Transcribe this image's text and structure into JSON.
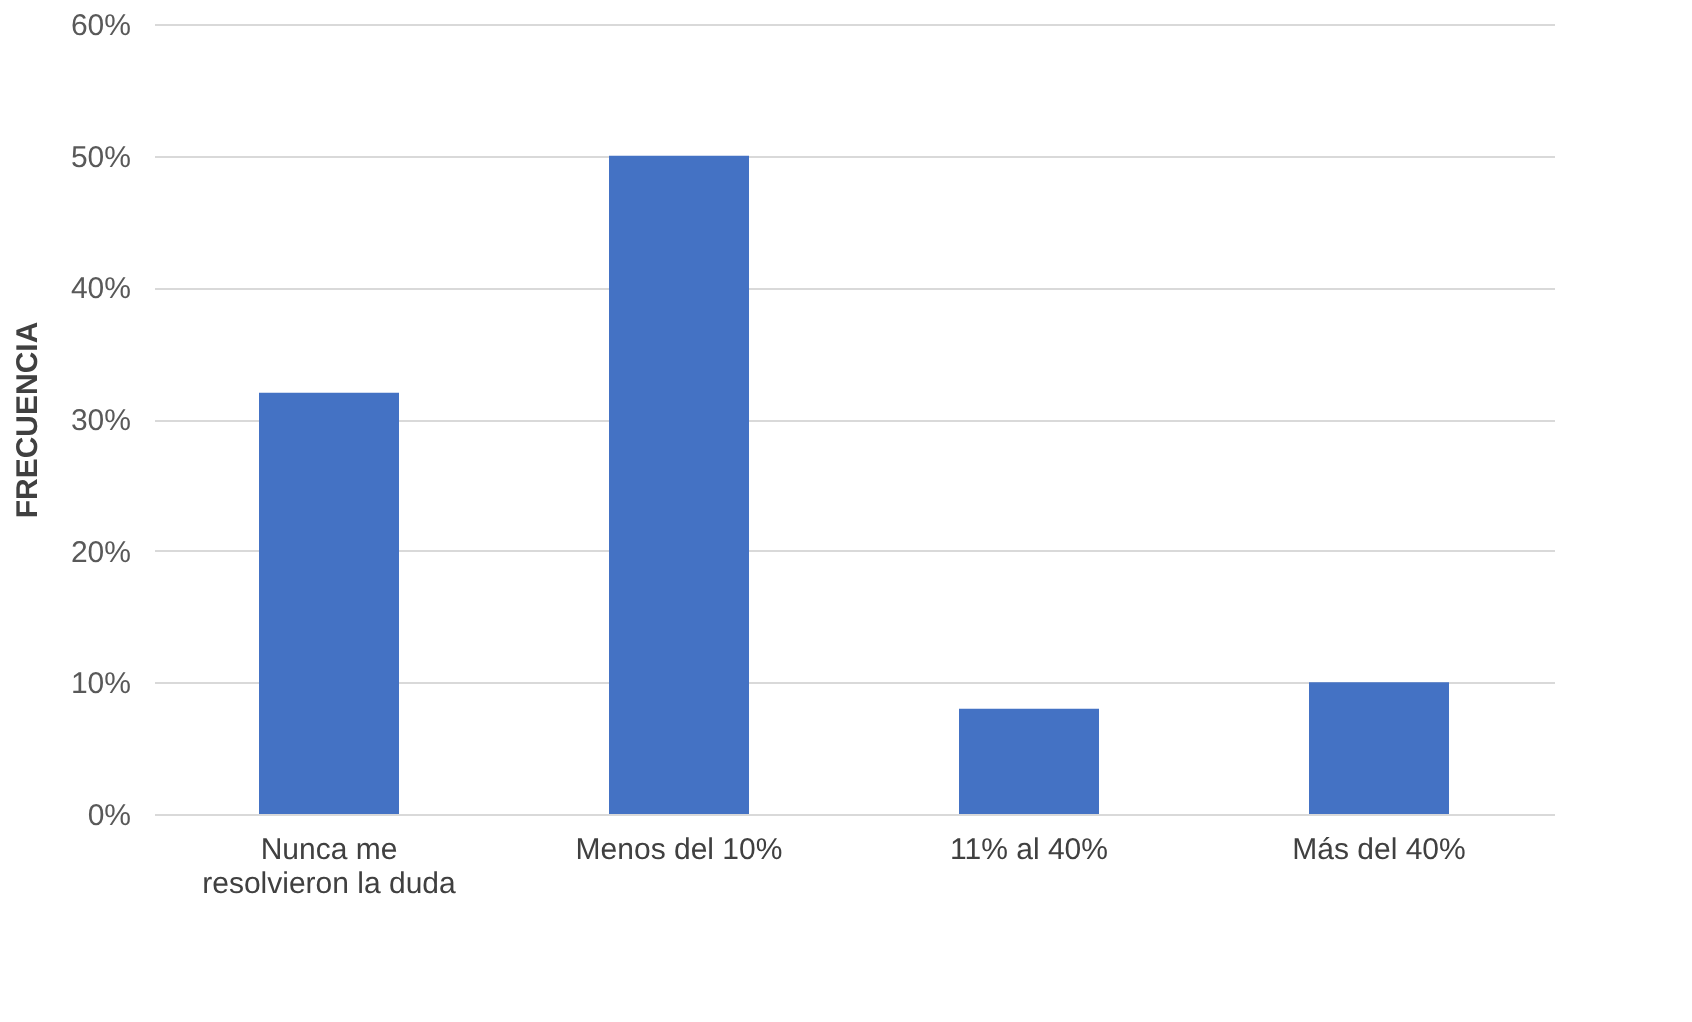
{
  "chart_data": {
    "type": "bar",
    "ylabel": "FRECUENCIA",
    "categories": [
      "Nunca me resolvieron la duda",
      "Menos del 10%",
      "11% al 40%",
      "Más del 40%"
    ],
    "values": [
      32,
      50,
      8,
      10
    ],
    "color": "#4472c4",
    "ylim": [
      0,
      60
    ],
    "yticks": [
      {
        "value": 0,
        "label": "0%"
      },
      {
        "value": 10,
        "label": "10%"
      },
      {
        "value": 20,
        "label": "20%"
      },
      {
        "value": 30,
        "label": "30%"
      },
      {
        "value": 40,
        "label": "40%"
      },
      {
        "value": 50,
        "label": "50%"
      },
      {
        "value": 60,
        "label": "60%"
      }
    ],
    "grid": "y"
  }
}
